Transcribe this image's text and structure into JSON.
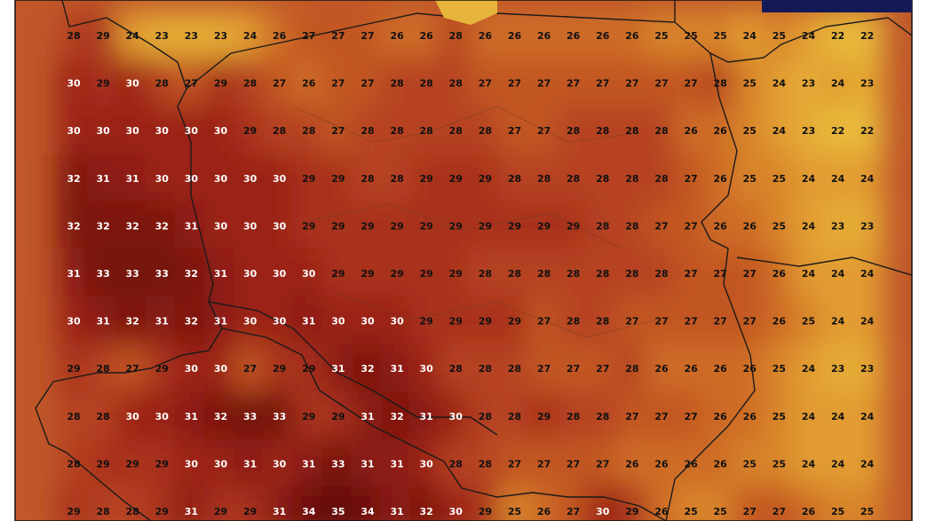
{
  "grid": {
    "rows": [
      [
        28,
        29,
        24,
        23,
        23,
        23,
        24,
        26,
        27,
        27,
        27,
        26,
        26,
        28,
        26,
        26,
        26,
        26,
        26,
        26,
        25,
        25,
        25,
        24,
        25,
        24,
        22,
        22
      ],
      [
        30,
        29,
        30,
        28,
        27,
        29,
        28,
        27,
        26,
        27,
        27,
        28,
        28,
        28,
        27,
        27,
        27,
        27,
        27,
        27,
        27,
        27,
        28,
        25,
        24,
        23,
        24,
        23
      ],
      [
        30,
        30,
        30,
        30,
        30,
        30,
        29,
        28,
        28,
        27,
        28,
        28,
        28,
        28,
        28,
        27,
        27,
        28,
        28,
        28,
        28,
        26,
        26,
        25,
        24,
        23,
        22,
        22
      ],
      [
        32,
        31,
        31,
        30,
        30,
        30,
        30,
        30,
        29,
        29,
        28,
        28,
        29,
        29,
        29,
        28,
        28,
        28,
        28,
        28,
        28,
        27,
        26,
        25,
        25,
        24,
        24,
        24
      ],
      [
        32,
        32,
        32,
        32,
        31,
        30,
        30,
        30,
        29,
        29,
        29,
        29,
        29,
        29,
        29,
        29,
        29,
        29,
        28,
        28,
        27,
        27,
        26,
        26,
        25,
        24,
        23,
        23
      ],
      [
        31,
        33,
        33,
        33,
        32,
        31,
        30,
        30,
        30,
        29,
        29,
        29,
        29,
        29,
        28,
        28,
        28,
        28,
        28,
        28,
        28,
        27,
        27,
        27,
        26,
        24,
        24,
        24
      ],
      [
        30,
        31,
        32,
        31,
        32,
        31,
        30,
        30,
        31,
        30,
        30,
        30,
        29,
        29,
        29,
        29,
        27,
        28,
        28,
        27,
        27,
        27,
        27,
        27,
        26,
        25,
        24,
        24
      ],
      [
        29,
        28,
        27,
        29,
        30,
        30,
        27,
        29,
        29,
        31,
        32,
        31,
        30,
        28,
        28,
        28,
        27,
        27,
        27,
        28,
        26,
        26,
        26,
        26,
        25,
        24,
        23,
        23
      ],
      [
        28,
        28,
        30,
        30,
        31,
        32,
        33,
        33,
        29,
        29,
        31,
        32,
        31,
        30,
        28,
        28,
        29,
        28,
        28,
        27,
        27,
        27,
        26,
        26,
        25,
        24,
        24,
        24
      ],
      [
        28,
        29,
        29,
        29,
        30,
        30,
        31,
        30,
        31,
        33,
        31,
        31,
        30,
        28,
        28,
        27,
        27,
        27,
        27,
        26,
        26,
        26,
        26,
        25,
        25,
        24,
        24,
        24
      ],
      [
        29,
        28,
        28,
        29,
        31,
        29,
        29,
        31,
        34,
        35,
        34,
        31,
        32,
        30,
        29,
        25,
        26,
        27,
        30,
        29,
        26,
        25,
        25,
        27,
        27,
        26,
        25,
        25
      ]
    ]
  }
}
